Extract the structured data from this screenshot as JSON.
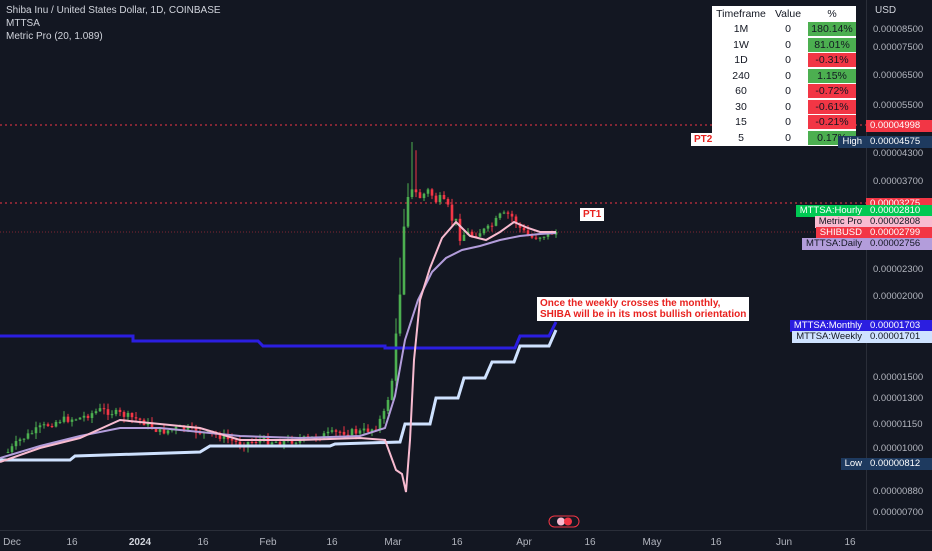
{
  "legend": {
    "symbol": "Shiba Inu / United States Dollar, 1D, COINBASE",
    "indicator1": "MTTSA",
    "indicator2": "Metric Pro (20, 1.089)"
  },
  "price_axis": {
    "currency": "USD",
    "ticks": [
      "0.00008500",
      "0.00007500",
      "0.00006500",
      "0.00005500",
      "0.00004300",
      "0.00003700",
      "0.00002300",
      "0.00002000",
      "0.00001500",
      "0.00001300",
      "0.00001150",
      "0.00001000",
      "0.00000880",
      "0.00000700",
      "0.00000625"
    ]
  },
  "price_labels": [
    {
      "name": "pt2-level-label",
      "text": "0.00004998",
      "bg": "#f23645",
      "fg": "#ffffff"
    },
    {
      "name": "high-label",
      "text": "0.00004575",
      "bg": "#1e3a5f",
      "fg": "#ffffff",
      "left": "High"
    },
    {
      "name": "pt1-level-label",
      "text": "0.00003275",
      "bg": "#f23645",
      "fg": "#ffffff"
    },
    {
      "name": "mttsa-hourly-label",
      "text": "0.00002810",
      "bg": "#00c853",
      "fg": "#ffffff",
      "left": "MTTSA:Hourly"
    },
    {
      "name": "metric-pro-label",
      "text": "0.00002808",
      "bg": "#f8bbd0",
      "fg": "#131722",
      "left": "Metric Pro"
    },
    {
      "name": "shibusd-label",
      "text": "0.00002799",
      "bg": "#f23645",
      "fg": "#ffffff",
      "left": "SHIBUSD"
    },
    {
      "name": "mttsa-daily-label",
      "text": "0.00002756",
      "bg": "#b39ddb",
      "fg": "#131722",
      "left": "MTTSA:Daily"
    },
    {
      "name": "mttsa-monthly-label",
      "text": "0.00001703",
      "bg": "#2b1ee0",
      "fg": "#ffffff",
      "left": "MTTSA:Monthly"
    },
    {
      "name": "mttsa-weekly-label",
      "text": "0.00001701",
      "bg": "#cfe2ff",
      "fg": "#131722",
      "left": "MTTSA:Weekly"
    },
    {
      "name": "low-label",
      "text": "0.00000812",
      "bg": "#1e3a5f",
      "fg": "#ffffff",
      "left": "Low"
    }
  ],
  "time_axis": {
    "ticks": [
      {
        "label": "Dec",
        "bold": false
      },
      {
        "label": "16",
        "bold": false
      },
      {
        "label": "2024",
        "bold": true
      },
      {
        "label": "16",
        "bold": false
      },
      {
        "label": "Feb",
        "bold": false
      },
      {
        "label": "16",
        "bold": false
      },
      {
        "label": "Mar",
        "bold": false
      },
      {
        "label": "16",
        "bold": false
      },
      {
        "label": "Apr",
        "bold": false
      },
      {
        "label": "16",
        "bold": false
      },
      {
        "label": "May",
        "bold": false
      },
      {
        "label": "16",
        "bold": false
      },
      {
        "label": "Jun",
        "bold": false
      },
      {
        "label": "16",
        "bold": false
      }
    ]
  },
  "timeframe_table": {
    "headers": [
      "Timeframe",
      "Value",
      "%"
    ],
    "rows": [
      {
        "tf": "1M",
        "value": "0",
        "pct": "180.14%",
        "color": "#4caf50"
      },
      {
        "tf": "1W",
        "value": "0",
        "pct": "81.01%",
        "color": "#4caf50"
      },
      {
        "tf": "1D",
        "value": "0",
        "pct": "-0.31%",
        "color": "#f23645"
      },
      {
        "tf": "240",
        "value": "0",
        "pct": "1.15%",
        "color": "#4caf50"
      },
      {
        "tf": "60",
        "value": "0",
        "pct": "-0.72%",
        "color": "#f23645"
      },
      {
        "tf": "30",
        "value": "0",
        "pct": "-0.61%",
        "color": "#f23645"
      },
      {
        "tf": "15",
        "value": "0",
        "pct": "-0.21%",
        "color": "#f23645"
      },
      {
        "tf": "5",
        "value": "0",
        "pct": "0.17%",
        "color": "#4caf50"
      }
    ]
  },
  "annotations": {
    "note_line1": "Once the weekly crosses the monthly,",
    "note_line2": "SHIBA will be in its most bullish orientation",
    "pt1": "PT1",
    "pt2": "PT2"
  },
  "colors": {
    "background": "#131722",
    "up_candle": "#4caf50",
    "down_candle": "#f23645",
    "mttsa_monthly": "#2b1ee0",
    "mttsa_weekly": "#cfe2ff",
    "mttsa_daily": "#b39ddb",
    "metric_pro": "#f8bbd0",
    "pt_line": "#f23645"
  }
}
